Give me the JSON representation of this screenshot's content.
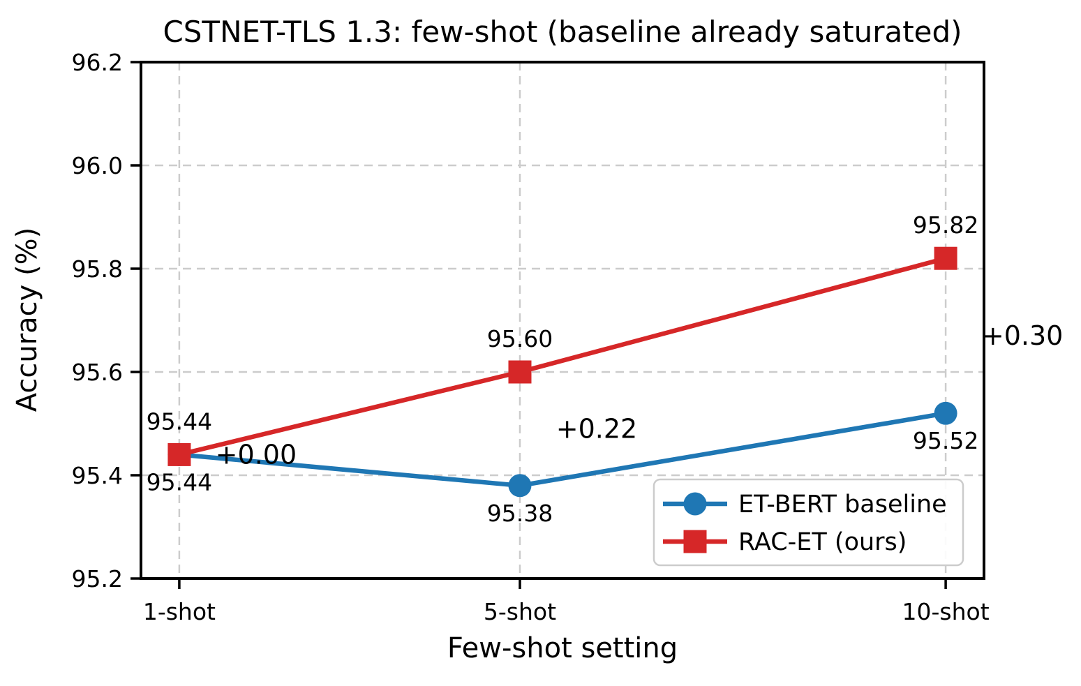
{
  "chart_data": {
    "type": "line",
    "title": "CSTNET-TLS 1.3: few-shot (baseline already saturated)",
    "xlabel": "Few-shot setting",
    "ylabel": "Accuracy (%)",
    "x": [
      1,
      5,
      10
    ],
    "x_tick_labels": [
      "1-shot",
      "5-shot",
      "10-shot"
    ],
    "xlim": [
      0.55,
      10.45
    ],
    "ylim": [
      95.2,
      96.2
    ],
    "y_ticks": [
      95.2,
      95.4,
      95.6,
      95.8,
      96.0,
      96.2
    ],
    "y_tick_labels": [
      "95.2",
      "95.4",
      "95.6",
      "95.8",
      "96.0",
      "96.2"
    ],
    "grid": true,
    "grid_color": "#cccccc",
    "axis_color": "#000000",
    "series": [
      {
        "name": "ET-BERT baseline",
        "color": "#1f77b4",
        "marker": "circle",
        "values": [
          95.44,
          95.38,
          95.52
        ],
        "point_labels": [
          "95.44",
          "95.38",
          "95.52"
        ],
        "point_label_side": "below"
      },
      {
        "name": "RAC-ET (ours)",
        "color": "#d62728",
        "marker": "square",
        "values": [
          95.44,
          95.6,
          95.82
        ],
        "point_labels": [
          "95.44",
          "95.60",
          "95.82"
        ],
        "point_label_side": "above"
      }
    ],
    "annotations": [
      {
        "text": "+0.00",
        "x": 1,
        "y": 95.44,
        "color": "#2ca02c"
      },
      {
        "text": "+0.22",
        "x": 5,
        "y": 95.49,
        "color": "#2ca02c"
      },
      {
        "text": "+0.30",
        "x": 10,
        "y": 95.67,
        "color": "#2ca02c"
      }
    ],
    "legend": {
      "position": "lower right",
      "entries": [
        "ET-BERT baseline",
        "RAC-ET (ours)"
      ]
    }
  }
}
